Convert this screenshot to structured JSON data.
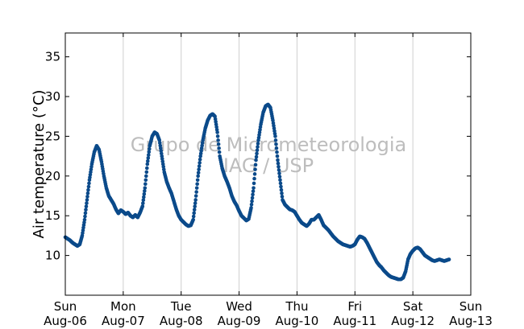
{
  "chart_data": {
    "type": "scatter",
    "title": "",
    "xlabel": "",
    "ylabel": "Air temperature (°C)",
    "ylim": [
      5,
      38
    ],
    "xlim": [
      "2017-08-06",
      "2017-08-13"
    ],
    "yticks": [
      10,
      15,
      20,
      25,
      30,
      35
    ],
    "xticks": [
      {
        "date": "2017-08-06",
        "day": "Sun",
        "label": "Aug-06"
      },
      {
        "date": "2017-08-07",
        "day": "Mon",
        "label": "Aug-07"
      },
      {
        "date": "2017-08-08",
        "day": "Tue",
        "label": "Aug-08"
      },
      {
        "date": "2017-08-09",
        "day": "Wed",
        "label": "Aug-09"
      },
      {
        "date": "2017-08-10",
        "day": "Thu",
        "label": "Aug-10"
      },
      {
        "date": "2017-08-11",
        "day": "Fri",
        "label": "Aug-11"
      },
      {
        "date": "2017-08-12",
        "day": "Sat",
        "label": "Aug-12"
      },
      {
        "date": "2017-08-13",
        "day": "Sun",
        "label": "Aug-13"
      }
    ],
    "grid": "vertical",
    "marker_color": "#0b4a8a",
    "watermark": [
      "Grupo de Micrometeorologia",
      "IAG / USP"
    ],
    "series": [
      {
        "name": "",
        "points": [
          [
            "2017-08-06T00:00",
            12.3
          ],
          [
            "2017-08-06T01:00",
            12.1
          ],
          [
            "2017-08-06T02:00",
            11.9
          ],
          [
            "2017-08-06T03:00",
            11.6
          ],
          [
            "2017-08-06T04:00",
            11.4
          ],
          [
            "2017-08-06T05:00",
            11.2
          ],
          [
            "2017-08-06T06:00",
            11.4
          ],
          [
            "2017-08-06T07:00",
            12.5
          ],
          [
            "2017-08-06T08:00",
            14.5
          ],
          [
            "2017-08-06T09:00",
            17.0
          ],
          [
            "2017-08-06T10:00",
            19.5
          ],
          [
            "2017-08-06T11:00",
            21.5
          ],
          [
            "2017-08-06T12:00",
            23.0
          ],
          [
            "2017-08-06T13:00",
            23.8
          ],
          [
            "2017-08-06T14:00",
            23.3
          ],
          [
            "2017-08-06T15:00",
            21.8
          ],
          [
            "2017-08-06T16:00",
            20.0
          ],
          [
            "2017-08-06T17:00",
            18.5
          ],
          [
            "2017-08-06T18:00",
            17.5
          ],
          [
            "2017-08-06T19:00",
            17.0
          ],
          [
            "2017-08-06T20:00",
            16.5
          ],
          [
            "2017-08-06T21:00",
            15.8
          ],
          [
            "2017-08-06T22:00",
            15.3
          ],
          [
            "2017-08-06T23:00",
            15.7
          ],
          [
            "2017-08-07T00:00",
            15.5
          ],
          [
            "2017-08-07T01:00",
            15.2
          ],
          [
            "2017-08-07T02:00",
            15.4
          ],
          [
            "2017-08-07T03:00",
            15.0
          ],
          [
            "2017-08-07T04:00",
            14.8
          ],
          [
            "2017-08-07T05:00",
            15.1
          ],
          [
            "2017-08-07T06:00",
            14.8
          ],
          [
            "2017-08-07T07:00",
            15.4
          ],
          [
            "2017-08-07T08:00",
            16.2
          ],
          [
            "2017-08-07T09:00",
            18.5
          ],
          [
            "2017-08-07T10:00",
            21.5
          ],
          [
            "2017-08-07T11:00",
            23.8
          ],
          [
            "2017-08-07T12:00",
            25.0
          ],
          [
            "2017-08-07T13:00",
            25.5
          ],
          [
            "2017-08-07T14:00",
            25.3
          ],
          [
            "2017-08-07T15:00",
            24.5
          ],
          [
            "2017-08-07T16:00",
            22.5
          ],
          [
            "2017-08-07T17:00",
            20.5
          ],
          [
            "2017-08-07T18:00",
            19.3
          ],
          [
            "2017-08-07T19:00",
            18.5
          ],
          [
            "2017-08-07T20:00",
            17.8
          ],
          [
            "2017-08-07T21:00",
            16.8
          ],
          [
            "2017-08-07T22:00",
            15.8
          ],
          [
            "2017-08-07T23:00",
            15.0
          ],
          [
            "2017-08-08T00:00",
            14.5
          ],
          [
            "2017-08-08T01:00",
            14.2
          ],
          [
            "2017-08-08T02:00",
            13.9
          ],
          [
            "2017-08-08T03:00",
            13.7
          ],
          [
            "2017-08-08T04:00",
            13.8
          ],
          [
            "2017-08-08T05:00",
            14.5
          ],
          [
            "2017-08-08T06:00",
            17.0
          ],
          [
            "2017-08-08T07:00",
            20.0
          ],
          [
            "2017-08-08T08:00",
            22.5
          ],
          [
            "2017-08-08T09:00",
            24.5
          ],
          [
            "2017-08-08T10:00",
            26.0
          ],
          [
            "2017-08-08T11:00",
            27.0
          ],
          [
            "2017-08-08T12:00",
            27.6
          ],
          [
            "2017-08-08T13:00",
            27.8
          ],
          [
            "2017-08-08T14:00",
            27.5
          ],
          [
            "2017-08-08T15:00",
            25.5
          ],
          [
            "2017-08-08T16:00",
            22.5
          ],
          [
            "2017-08-08T17:00",
            21.0
          ],
          [
            "2017-08-08T18:00",
            20.0
          ],
          [
            "2017-08-08T19:00",
            19.3
          ],
          [
            "2017-08-08T20:00",
            18.5
          ],
          [
            "2017-08-08T21:00",
            17.5
          ],
          [
            "2017-08-08T22:00",
            16.8
          ],
          [
            "2017-08-08T23:00",
            16.3
          ],
          [
            "2017-08-09T00:00",
            15.6
          ],
          [
            "2017-08-09T01:00",
            15.0
          ],
          [
            "2017-08-09T02:00",
            14.7
          ],
          [
            "2017-08-09T03:00",
            14.4
          ],
          [
            "2017-08-09T04:00",
            14.6
          ],
          [
            "2017-08-09T05:00",
            16.0
          ],
          [
            "2017-08-09T06:00",
            18.5
          ],
          [
            "2017-08-09T07:00",
            22.0
          ],
          [
            "2017-08-09T08:00",
            24.5
          ],
          [
            "2017-08-09T09:00",
            26.5
          ],
          [
            "2017-08-09T10:00",
            28.0
          ],
          [
            "2017-08-09T11:00",
            28.8
          ],
          [
            "2017-08-09T12:00",
            29.0
          ],
          [
            "2017-08-09T13:00",
            28.6
          ],
          [
            "2017-08-09T14:00",
            27.0
          ],
          [
            "2017-08-09T15:00",
            25.0
          ],
          [
            "2017-08-09T16:00",
            22.0
          ],
          [
            "2017-08-09T17:00",
            19.5
          ],
          [
            "2017-08-09T18:00",
            17.0
          ],
          [
            "2017-08-09T19:00",
            16.4
          ],
          [
            "2017-08-09T20:00",
            16.1
          ],
          [
            "2017-08-09T21:00",
            15.8
          ],
          [
            "2017-08-09T22:00",
            15.7
          ],
          [
            "2017-08-09T23:00",
            15.5
          ],
          [
            "2017-08-10T00:00",
            15.0
          ],
          [
            "2017-08-10T01:00",
            14.5
          ],
          [
            "2017-08-10T02:00",
            14.1
          ],
          [
            "2017-08-10T03:00",
            13.9
          ],
          [
            "2017-08-10T04:00",
            13.7
          ],
          [
            "2017-08-10T05:00",
            14.0
          ],
          [
            "2017-08-10T06:00",
            14.5
          ],
          [
            "2017-08-10T07:00",
            14.5
          ],
          [
            "2017-08-10T08:00",
            14.8
          ],
          [
            "2017-08-10T09:00",
            15.1
          ],
          [
            "2017-08-10T10:00",
            14.5
          ],
          [
            "2017-08-10T11:00",
            13.8
          ],
          [
            "2017-08-10T12:00",
            13.5
          ],
          [
            "2017-08-10T13:00",
            13.2
          ],
          [
            "2017-08-10T14:00",
            12.8
          ],
          [
            "2017-08-10T15:00",
            12.4
          ],
          [
            "2017-08-10T16:00",
            12.1
          ],
          [
            "2017-08-10T17:00",
            11.8
          ],
          [
            "2017-08-10T18:00",
            11.6
          ],
          [
            "2017-08-10T19:00",
            11.4
          ],
          [
            "2017-08-10T20:00",
            11.3
          ],
          [
            "2017-08-10T21:00",
            11.2
          ],
          [
            "2017-08-10T22:00",
            11.1
          ],
          [
            "2017-08-10T23:00",
            11.2
          ],
          [
            "2017-08-11T00:00",
            11.4
          ],
          [
            "2017-08-11T01:00",
            12.0
          ],
          [
            "2017-08-11T02:00",
            12.4
          ],
          [
            "2017-08-11T03:00",
            12.3
          ],
          [
            "2017-08-11T04:00",
            12.1
          ],
          [
            "2017-08-11T05:00",
            11.6
          ],
          [
            "2017-08-11T06:00",
            11.0
          ],
          [
            "2017-08-11T07:00",
            10.4
          ],
          [
            "2017-08-11T08:00",
            9.8
          ],
          [
            "2017-08-11T09:00",
            9.2
          ],
          [
            "2017-08-11T10:00",
            8.8
          ],
          [
            "2017-08-11T11:00",
            8.5
          ],
          [
            "2017-08-11T12:00",
            8.1
          ],
          [
            "2017-08-11T13:00",
            7.8
          ],
          [
            "2017-08-11T14:00",
            7.5
          ],
          [
            "2017-08-11T15:00",
            7.3
          ],
          [
            "2017-08-11T16:00",
            7.2
          ],
          [
            "2017-08-11T17:00",
            7.1
          ],
          [
            "2017-08-11T18:00",
            7.0
          ],
          [
            "2017-08-11T19:00",
            7.0
          ],
          [
            "2017-08-11T20:00",
            7.2
          ],
          [
            "2017-08-11T21:00",
            8.0
          ],
          [
            "2017-08-11T22:00",
            9.5
          ],
          [
            "2017-08-11T23:00",
            10.2
          ],
          [
            "2017-08-12T00:00",
            10.6
          ],
          [
            "2017-08-12T01:00",
            10.9
          ],
          [
            "2017-08-12T02:00",
            11.0
          ],
          [
            "2017-08-12T03:00",
            10.8
          ],
          [
            "2017-08-12T04:00",
            10.4
          ],
          [
            "2017-08-12T05:00",
            10.0
          ],
          [
            "2017-08-12T06:00",
            9.8
          ],
          [
            "2017-08-12T07:00",
            9.6
          ],
          [
            "2017-08-12T08:00",
            9.4
          ],
          [
            "2017-08-12T09:00",
            9.3
          ],
          [
            "2017-08-12T10:00",
            9.4
          ],
          [
            "2017-08-12T11:00",
            9.5
          ],
          [
            "2017-08-12T12:00",
            9.4
          ],
          [
            "2017-08-12T13:00",
            9.3
          ],
          [
            "2017-08-12T14:00",
            9.4
          ],
          [
            "2017-08-12T15:00",
            9.5
          ]
        ]
      }
    ]
  }
}
